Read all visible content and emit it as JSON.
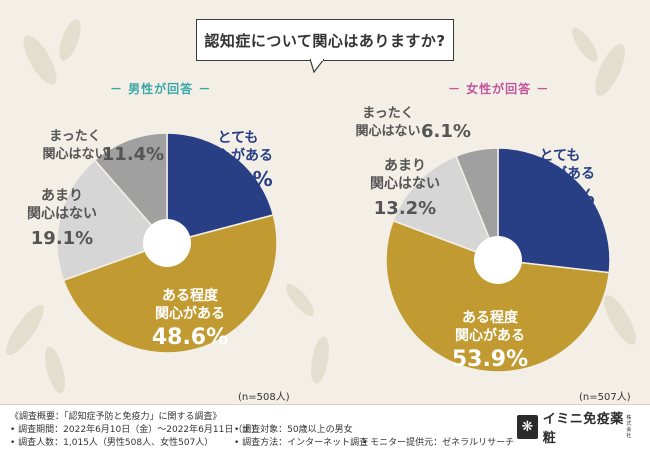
{
  "title": "認知症について関心はありますか?",
  "colors": {
    "very_interested": "#283f86",
    "somewhat_interested": "#c19b31",
    "not_very_interested": "#d6d6d6",
    "not_at_all_interested": "#a0a0a0",
    "male_label": "#3ba7a8",
    "female_label": "#c0569d"
  },
  "chart_data": [
    {
      "type": "pie",
      "title": "－ 男性が回答 －",
      "sample_size": "(n=508人)",
      "slices": [
        {
          "label_line1": "とても",
          "label_line2": "関心がある",
          "value": 20.9,
          "value_text": "20.9%"
        },
        {
          "label_line1": "ある程度",
          "label_line2": "関心がある",
          "value": 48.6,
          "value_text": "48.6%"
        },
        {
          "label_line1": "あまり",
          "label_line2": "関心はない",
          "value": 19.1,
          "value_text": "19.1%"
        },
        {
          "label_line1": "まったく",
          "label_line2": "関心はない",
          "value": 11.4,
          "value_text": "11.4%"
        }
      ]
    },
    {
      "type": "pie",
      "title": "－ 女性が回答 －",
      "sample_size": "(n=507人)",
      "slices": [
        {
          "label_line1": "とても",
          "label_line2": "関心がある",
          "value": 26.8,
          "value_text": "26.8%"
        },
        {
          "label_line1": "ある程度",
          "label_line2": "関心がある",
          "value": 53.9,
          "value_text": "53.9%"
        },
        {
          "label_line1": "あまり",
          "label_line2": "関心はない",
          "value": 13.2,
          "value_text": "13.2%"
        },
        {
          "label_line1": "まったく",
          "label_line2": "関心はない",
          "value": 6.1,
          "value_text": "6.1%"
        }
      ]
    }
  ],
  "footer": {
    "survey_name": "《調査概要：「認知症予防と免疫力」に関する調査》",
    "period": "• 調査期間：2022年6月10日（金）～2022年6月11日（土）",
    "respondents": "• 調査人数：1,015人（男性508人、女性507人）",
    "target": "• 調査対象：50歳以上の男女",
    "method": "• 調査方法：インターネット調査",
    "provider": "• モニター提供元：ゼネラルリサーチ",
    "brand": "イミニ免疫薬粧",
    "brand_sub": "株式会社"
  }
}
